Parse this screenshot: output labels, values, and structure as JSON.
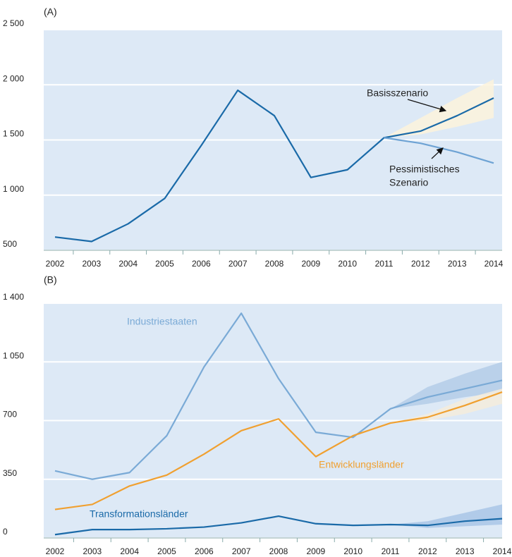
{
  "chart_data": [
    {
      "type": "line",
      "title": "(A)",
      "grid": true,
      "background": "#dde9f6",
      "categories": [
        "2002",
        "2003",
        "2004",
        "2005",
        "2006",
        "2007",
        "2008",
        "2009",
        "2010",
        "2011",
        "2012",
        "2013",
        "2014"
      ],
      "ylim": [
        500,
        2500
      ],
      "yticks": [
        500,
        {
          "value": 1000,
          "label": "1 000"
        },
        {
          "value": 1500,
          "label": "1 500"
        },
        {
          "value": 2000,
          "label": "2 000"
        },
        {
          "value": 2500,
          "label": "2 500"
        }
      ],
      "series": [
        {
          "color": "#1a6aa8",
          "values": [
            620,
            580,
            740,
            970,
            1450,
            1950,
            1720,
            1160,
            1230,
            1520,
            1580,
            1720,
            1880
          ],
          "band_color": "#fdf3dc",
          "band_upper": [
            null,
            null,
            null,
            null,
            null,
            null,
            null,
            null,
            null,
            1520,
            1700,
            1880,
            2050
          ],
          "band_lower": [
            null,
            null,
            null,
            null,
            null,
            null,
            null,
            null,
            null,
            1520,
            1550,
            1620,
            1700
          ]
        },
        {
          "color": "#6ea3d4",
          "values": [
            null,
            null,
            null,
            null,
            null,
            null,
            null,
            null,
            null,
            1520,
            1470,
            1390,
            1290
          ]
        }
      ],
      "annotations": [
        {
          "text": "Basisszenario"
        },
        {
          "lines": [
            "Pessimistisches",
            "Szenario"
          ]
        }
      ]
    },
    {
      "type": "line",
      "title": "(B)",
      "grid": true,
      "background": "#dde9f6",
      "categories": [
        "2002",
        "2003",
        "2004",
        "2005",
        "2006",
        "2007",
        "2008",
        "2009",
        "2010",
        "2011",
        "2012",
        "2013",
        "2014"
      ],
      "ylim": [
        0,
        1400
      ],
      "yticks": [
        0,
        350,
        700,
        {
          "value": 1050,
          "label": "1 050"
        },
        {
          "value": 1400,
          "label": "1 400"
        }
      ],
      "series": [
        {
          "name": "Industriestaaten",
          "color": "#7aaad6",
          "values": [
            400,
            350,
            390,
            610,
            1020,
            1340,
            950,
            630,
            600,
            770,
            840,
            890,
            940
          ],
          "band_color": "#b4cde8",
          "band_upper": [
            null,
            null,
            null,
            null,
            null,
            null,
            null,
            null,
            null,
            770,
            900,
            980,
            1050
          ],
          "band_lower": [
            null,
            null,
            null,
            null,
            null,
            null,
            null,
            null,
            null,
            770,
            800,
            840,
            870
          ]
        },
        {
          "name": "Entwicklungsländer",
          "color": "#f0a030",
          "values": [
            170,
            200,
            310,
            375,
            500,
            640,
            710,
            485,
            610,
            685,
            720,
            790,
            870
          ],
          "band_color": "#f4ecdc",
          "band_upper": [
            null,
            null,
            null,
            null,
            null,
            null,
            null,
            null,
            null,
            685,
            740,
            830,
            890
          ],
          "band_lower": [
            null,
            null,
            null,
            null,
            null,
            null,
            null,
            null,
            null,
            685,
            700,
            740,
            800
          ]
        },
        {
          "name": "Transformationsländer",
          "color": "#1a6aa8",
          "values": [
            20,
            50,
            50,
            55,
            65,
            90,
            130,
            85,
            75,
            80,
            75,
            100,
            115
          ],
          "band_color": "#a9c6e6",
          "band_upper": [
            null,
            null,
            null,
            null,
            null,
            null,
            null,
            null,
            null,
            80,
            100,
            150,
            200
          ],
          "band_lower": [
            null,
            null,
            null,
            null,
            null,
            null,
            null,
            null,
            null,
            80,
            60,
            70,
            80
          ]
        }
      ]
    }
  ]
}
